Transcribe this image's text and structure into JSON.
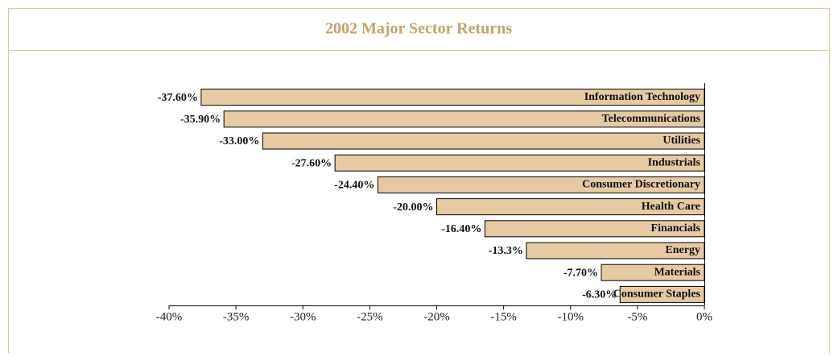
{
  "chart_data": {
    "type": "bar",
    "orientation": "horizontal",
    "title": "2002 Major Sector Returns",
    "categories": [
      "Information Technology",
      "Telecommunications",
      "Utilities",
      "Industrials",
      "Consumer Discretionary",
      "Health Care",
      "Financials",
      "Energy",
      "Materials",
      "Consumer Staples"
    ],
    "values": [
      -37.6,
      -35.9,
      -33.0,
      -27.6,
      -24.4,
      -20.0,
      -16.4,
      -13.3,
      -7.7,
      -6.3
    ],
    "value_labels": [
      "-37.60%",
      "-35.90%",
      "-33.00%",
      "-27.60%",
      "-24.40%",
      "-20.00%",
      "-16.40%",
      "-13.3%",
      "-7.70%",
      "-6.30%"
    ],
    "color": "#e5caa4",
    "xlim": [
      -40,
      0
    ],
    "xticks": [
      {
        "value": -40,
        "label": "-40%"
      },
      {
        "value": -35,
        "label": "-35%"
      },
      {
        "value": -30,
        "label": "-30%"
      },
      {
        "value": -25,
        "label": "-25%"
      },
      {
        "value": -20,
        "label": "-20%"
      },
      {
        "value": -15,
        "label": "-15%"
      },
      {
        "value": -10,
        "label": "-10%"
      },
      {
        "value": -5,
        "label": "-5%"
      },
      {
        "value": 0,
        "label": "0%"
      }
    ],
    "grid": false
  }
}
